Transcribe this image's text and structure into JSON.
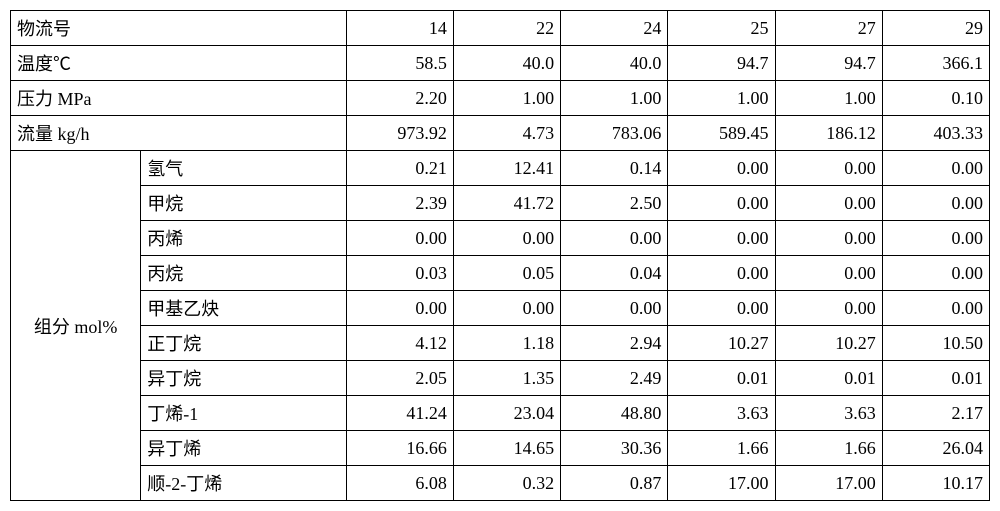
{
  "table": {
    "border_color": "#000000",
    "background_color": "#ffffff",
    "text_color": "#000000",
    "font_size": 18,
    "col1_width": 130,
    "col2_width": 205,
    "data_col_width": 107,
    "header_rows": [
      {
        "label": "物流号",
        "values": [
          "14",
          "22",
          "24",
          "25",
          "27",
          "29"
        ]
      },
      {
        "label": "温度℃",
        "values": [
          "58.5",
          "40.0",
          "40.0",
          "94.7",
          "94.7",
          "366.1"
        ]
      },
      {
        "label": "压力 MPa",
        "values": [
          "2.20",
          "1.00",
          "1.00",
          "1.00",
          "1.00",
          "0.10"
        ]
      },
      {
        "label": "流量 kg/h",
        "values": [
          "973.92",
          "4.73",
          "783.06",
          "589.45",
          "186.12",
          "403.33"
        ]
      }
    ],
    "component_group_label": "组分 mol%",
    "component_rows": [
      {
        "label": "氢气",
        "values": [
          "0.21",
          "12.41",
          "0.14",
          "0.00",
          "0.00",
          "0.00"
        ]
      },
      {
        "label": "甲烷",
        "values": [
          "2.39",
          "41.72",
          "2.50",
          "0.00",
          "0.00",
          "0.00"
        ]
      },
      {
        "label": "丙烯",
        "values": [
          "0.00",
          "0.00",
          "0.00",
          "0.00",
          "0.00",
          "0.00"
        ]
      },
      {
        "label": "丙烷",
        "values": [
          "0.03",
          "0.05",
          "0.04",
          "0.00",
          "0.00",
          "0.00"
        ]
      },
      {
        "label": "甲基乙炔",
        "values": [
          "0.00",
          "0.00",
          "0.00",
          "0.00",
          "0.00",
          "0.00"
        ]
      },
      {
        "label": "正丁烷",
        "values": [
          "4.12",
          "1.18",
          "2.94",
          "10.27",
          "10.27",
          "10.50"
        ]
      },
      {
        "label": "异丁烷",
        "values": [
          "2.05",
          "1.35",
          "2.49",
          "0.01",
          "0.01",
          "0.01"
        ]
      },
      {
        "label": "丁烯-1",
        "values": [
          "41.24",
          "23.04",
          "48.80",
          "3.63",
          "3.63",
          "2.17"
        ]
      },
      {
        "label": "异丁烯",
        "values": [
          "16.66",
          "14.65",
          "30.36",
          "1.66",
          "1.66",
          "26.04"
        ]
      },
      {
        "label": "顺-2-丁烯",
        "values": [
          "6.08",
          "0.32",
          "0.87",
          "17.00",
          "17.00",
          "10.17"
        ]
      }
    ]
  }
}
